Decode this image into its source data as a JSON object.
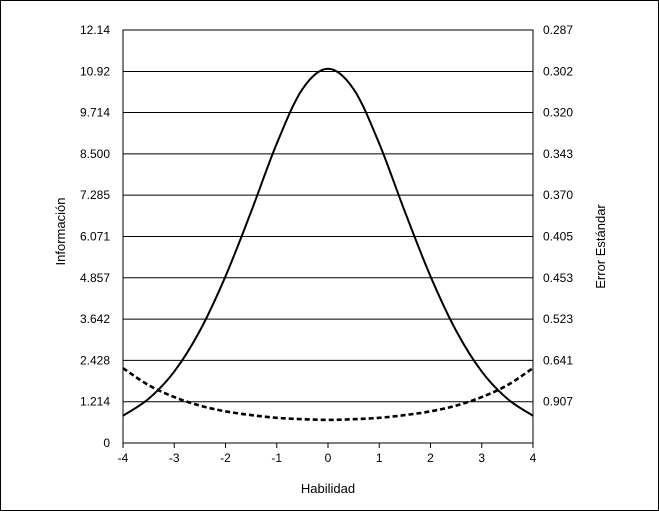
{
  "chart_data": {
    "type": "line",
    "title": "",
    "xlabel": "Habilidad",
    "ylabel_left": "Información",
    "ylabel_right": "Error Estándar",
    "xlim": [
      -4,
      4
    ],
    "ylim": [
      0,
      12.14
    ],
    "grid": "horizontal",
    "x_ticks": [
      "-4",
      "-3",
      "-2",
      "-1",
      "0",
      "1",
      "2",
      "3",
      "4"
    ],
    "y_left_ticks": [
      "0",
      "1.214",
      "2.428",
      "3.642",
      "4.857",
      "6.071",
      "7.285",
      "8.500",
      "9.714",
      "10.92",
      "12.14"
    ],
    "y_left_tick_values": [
      0,
      1.214,
      2.428,
      3.642,
      4.857,
      6.071,
      7.285,
      8.5,
      9.714,
      10.92,
      12.14
    ],
    "y_right_ticks": [
      "",
      "0.907",
      "0.641",
      "0.523",
      "0.453",
      "0.405",
      "0.370",
      "0.343",
      "0.320",
      "0.302",
      "0.287"
    ],
    "series": [
      {
        "style": "solid",
        "color": "#000000",
        "x": [
          -4,
          -3.5,
          -3,
          -2.5,
          -2,
          -1.5,
          -1,
          -0.5,
          0,
          0.5,
          1,
          1.5,
          2,
          2.5,
          3,
          3.5,
          4
        ],
        "values": [
          0.8,
          1.3,
          2.1,
          3.3,
          4.9,
          6.8,
          8.8,
          10.4,
          11.0,
          10.4,
          8.8,
          6.8,
          4.9,
          3.3,
          2.1,
          1.3,
          0.8
        ]
      },
      {
        "style": "dashed",
        "color": "#000000",
        "x": [
          -4,
          -3.5,
          -3,
          -2.5,
          -2,
          -1.5,
          -1,
          -0.5,
          0,
          0.5,
          1,
          1.5,
          2,
          2.5,
          3,
          3.5,
          4
        ],
        "values": [
          2.2,
          1.7,
          1.35,
          1.1,
          0.93,
          0.82,
          0.74,
          0.7,
          0.68,
          0.7,
          0.74,
          0.82,
          0.93,
          1.1,
          1.35,
          1.7,
          2.2
        ]
      }
    ]
  }
}
